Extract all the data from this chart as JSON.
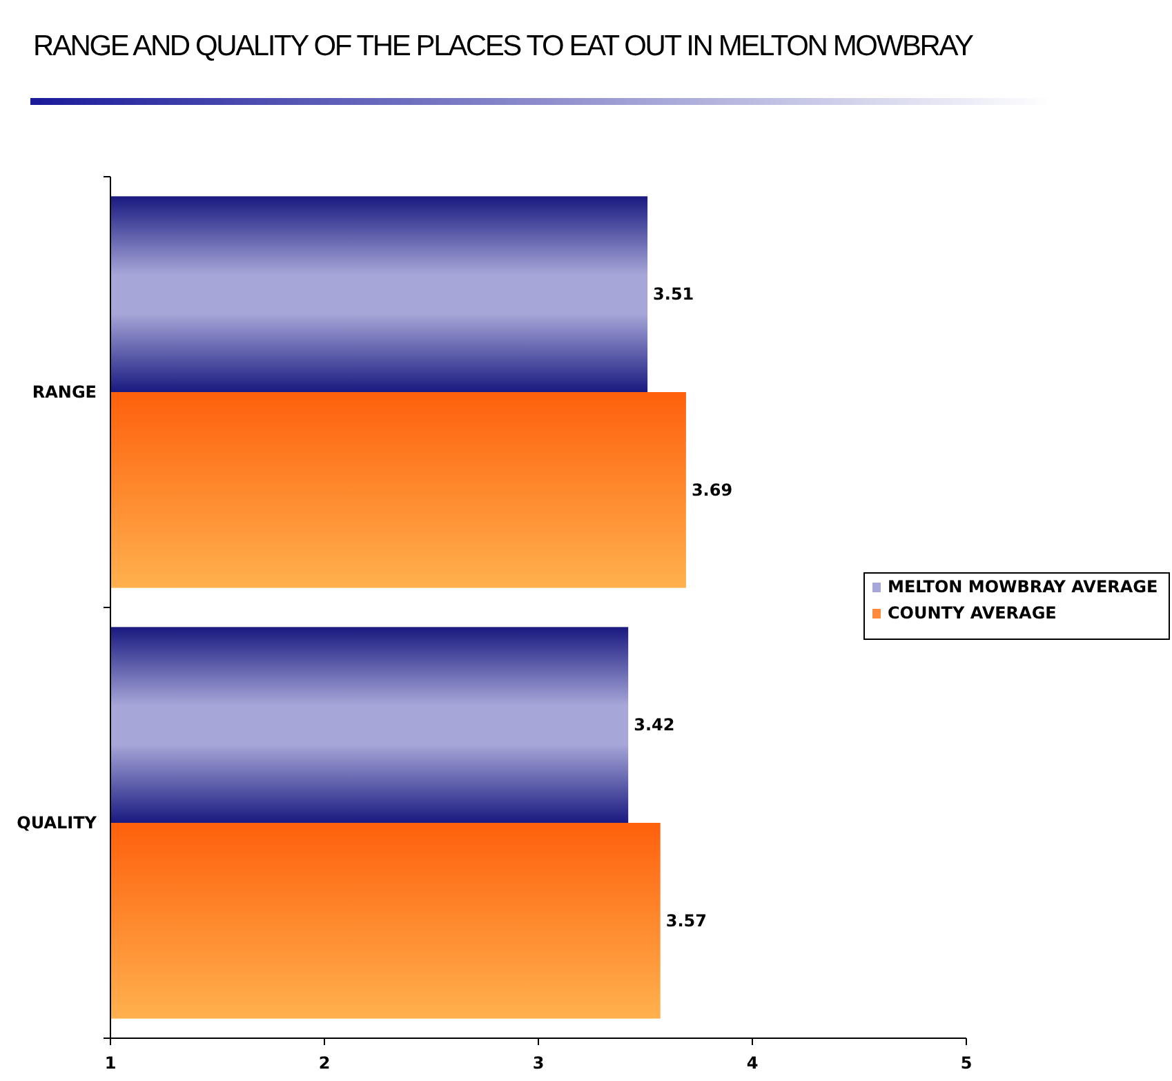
{
  "chart_data": {
    "type": "bar",
    "orientation": "horizontal",
    "title": "RANGE AND QUALITY OF THE PLACES TO EAT OUT IN MELTON MOWBRAY",
    "categories": [
      "RANGE",
      "QUALITY"
    ],
    "series": [
      {
        "name": "MELTON MOWBRAY AVERAGE",
        "color": "#a6a6d8",
        "values": [
          3.51,
          3.42
        ]
      },
      {
        "name": "COUNTY AVERAGE",
        "color": "#ff8a3d",
        "values": [
          3.69,
          3.57
        ]
      }
    ],
    "xlim": [
      1,
      5
    ],
    "xticks": [
      1,
      2,
      3,
      4,
      5
    ],
    "grid": false,
    "legend": "right",
    "data_labels": true
  }
}
